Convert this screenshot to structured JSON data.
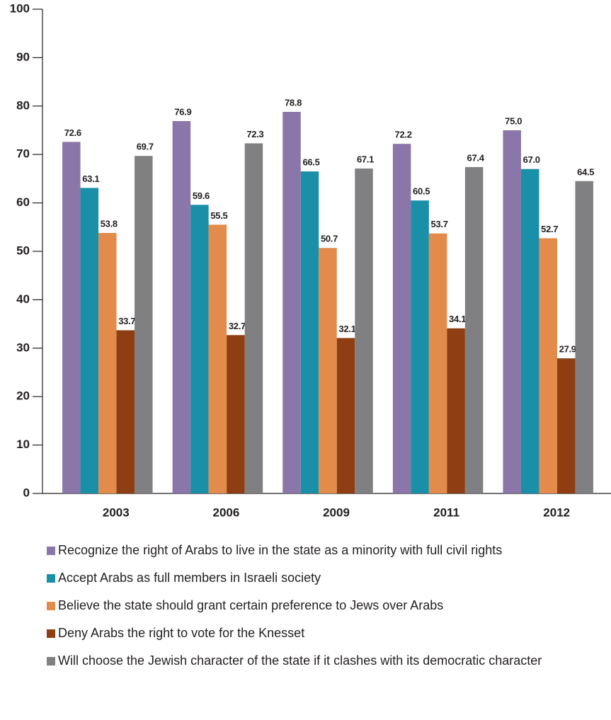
{
  "chart_data": {
    "type": "bar",
    "categories": [
      "2003",
      "2006",
      "2009",
      "2011",
      "2012"
    ],
    "series": [
      {
        "name": "Recognize the right of Arabs to live in the state as a minority with full civil rights",
        "color": "#8b76a9",
        "values": [
          72.6,
          76.9,
          78.8,
          72.2,
          75.0
        ],
        "value_labels": [
          "72.6",
          "76.9",
          "78.8",
          "72.2",
          "75.0"
        ]
      },
      {
        "name": "Accept Arabs as full members in Israeli society",
        "color": "#1a8fa8",
        "values": [
          63.1,
          59.6,
          66.5,
          60.5,
          67.0
        ],
        "value_labels": [
          "63.1",
          "59.6",
          "66.5",
          "60.5",
          "67.0"
        ]
      },
      {
        "name": "Believe the state should grant certain preference to Jews over Arabs",
        "color": "#e38b4a",
        "values": [
          53.8,
          55.5,
          50.7,
          53.7,
          52.7
        ],
        "value_labels": [
          "53.8",
          "55.5",
          "50.7",
          "53.7",
          "52.7"
        ]
      },
      {
        "name": "Deny Arabs the right to vote for the Knesset",
        "color": "#8e3e12",
        "values": [
          33.7,
          32.7,
          32.1,
          34.1,
          27.9
        ],
        "value_labels": [
          "33.7",
          "32.7",
          "32.1",
          "34.1",
          "27.9"
        ]
      },
      {
        "name": "Will choose the Jewish character of the state if it clashes with its democratic character",
        "color": "#808083",
        "values": [
          69.7,
          72.3,
          67.1,
          67.4,
          64.5
        ],
        "value_labels": [
          "69.7",
          "72.3",
          "67.1",
          "67.4",
          "64.5"
        ]
      }
    ],
    "ylim": [
      0,
      100
    ],
    "yticks": [
      0,
      10,
      20,
      30,
      40,
      50,
      60,
      70,
      80,
      90,
      100
    ],
    "grid": false
  }
}
